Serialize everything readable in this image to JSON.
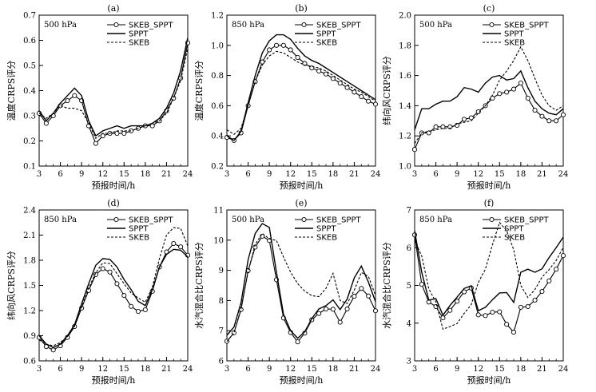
{
  "chart_data": [
    {
      "type": "line",
      "title": "(a)",
      "annotation": "500 hPa",
      "xlabel": "预报时间/h",
      "ylabel": "温度CRPS评分",
      "xlim": [
        3,
        24
      ],
      "ylim": [
        0.1,
        0.7
      ],
      "xticks": [
        3,
        6,
        9,
        12,
        15,
        18,
        21,
        24
      ],
      "yticks": [
        0.1,
        0.2,
        0.3,
        0.4,
        0.5,
        0.6,
        0.7
      ],
      "legend": "top-right",
      "x": [
        3,
        4,
        5,
        6,
        7,
        8,
        9,
        10,
        11,
        12,
        13,
        14,
        15,
        16,
        17,
        18,
        19,
        20,
        21,
        22,
        23,
        24
      ],
      "series": [
        {
          "name": "SKEB_SPPT",
          "style": "solid-circle",
          "values": [
            0.31,
            0.27,
            0.3,
            0.34,
            0.36,
            0.38,
            0.36,
            0.26,
            0.19,
            0.22,
            0.23,
            0.23,
            0.23,
            0.24,
            0.25,
            0.26,
            0.26,
            0.28,
            0.32,
            0.37,
            0.45,
            0.59
          ]
        },
        {
          "name": "SPPT",
          "style": "solid",
          "values": [
            0.32,
            0.28,
            0.31,
            0.35,
            0.38,
            0.41,
            0.38,
            0.28,
            0.22,
            0.24,
            0.25,
            0.26,
            0.25,
            0.26,
            0.26,
            0.26,
            0.27,
            0.29,
            0.33,
            0.39,
            0.48,
            0.61
          ]
        },
        {
          "name": "SKEB",
          "style": "dashed",
          "values": [
            0.31,
            0.29,
            0.31,
            0.34,
            0.33,
            0.33,
            0.32,
            0.27,
            0.21,
            0.23,
            0.23,
            0.24,
            0.24,
            0.24,
            0.25,
            0.26,
            0.27,
            0.28,
            0.31,
            0.37,
            0.44,
            0.57
          ]
        }
      ]
    },
    {
      "type": "line",
      "title": "(b)",
      "annotation": "850 hPa",
      "xlabel": "预报时间/h",
      "ylabel": "温度CRPS评分",
      "xlim": [
        3,
        24
      ],
      "ylim": [
        0.2,
        1.2
      ],
      "xticks": [
        3,
        6,
        9,
        12,
        15,
        18,
        21,
        24
      ],
      "yticks": [
        0.2,
        0.4,
        0.6,
        0.8,
        1.0,
        1.2
      ],
      "legend": "top-right",
      "x": [
        3,
        4,
        5,
        6,
        7,
        8,
        9,
        10,
        11,
        12,
        13,
        14,
        15,
        16,
        17,
        18,
        19,
        20,
        21,
        22,
        23,
        24
      ],
      "series": [
        {
          "name": "SKEB_SPPT",
          "style": "solid-circle",
          "values": [
            0.39,
            0.37,
            0.42,
            0.6,
            0.76,
            0.89,
            0.97,
            1.0,
            1.0,
            0.97,
            0.92,
            0.88,
            0.85,
            0.83,
            0.81,
            0.78,
            0.75,
            0.72,
            0.69,
            0.66,
            0.63,
            0.61
          ]
        },
        {
          "name": "SPPT",
          "style": "solid",
          "values": [
            0.4,
            0.37,
            0.43,
            0.62,
            0.8,
            0.95,
            1.03,
            1.07,
            1.07,
            1.04,
            0.98,
            0.93,
            0.9,
            0.88,
            0.85,
            0.82,
            0.79,
            0.76,
            0.73,
            0.7,
            0.67,
            0.64
          ]
        },
        {
          "name": "SKEB",
          "style": "dashed",
          "values": [
            0.44,
            0.41,
            0.45,
            0.6,
            0.76,
            0.87,
            0.93,
            0.96,
            0.95,
            0.92,
            0.89,
            0.87,
            0.86,
            0.85,
            0.83,
            0.8,
            0.77,
            0.74,
            0.71,
            0.69,
            0.66,
            0.63
          ]
        }
      ]
    },
    {
      "type": "line",
      "title": "(c)",
      "annotation": "500 hPa",
      "xlabel": "预报时间/h",
      "ylabel": "纬向风CRPS评分",
      "xlim": [
        3,
        24
      ],
      "ylim": [
        1.0,
        2.0
      ],
      "xticks": [
        3,
        6,
        9,
        12,
        15,
        18,
        21,
        24
      ],
      "yticks": [
        1.0,
        1.2,
        1.4,
        1.6,
        1.8,
        2.0
      ],
      "legend": "top-right",
      "x": [
        3,
        4,
        5,
        6,
        7,
        8,
        9,
        10,
        11,
        12,
        13,
        14,
        15,
        16,
        17,
        18,
        19,
        20,
        21,
        22,
        23,
        24
      ],
      "series": [
        {
          "name": "SKEB_SPPT",
          "style": "solid-circle",
          "values": [
            1.11,
            1.22,
            1.22,
            1.26,
            1.26,
            1.26,
            1.27,
            1.31,
            1.32,
            1.36,
            1.4,
            1.45,
            1.48,
            1.49,
            1.51,
            1.55,
            1.45,
            1.37,
            1.33,
            1.3,
            1.3,
            1.34
          ]
        },
        {
          "name": "SPPT",
          "style": "solid",
          "values": [
            1.24,
            1.38,
            1.38,
            1.41,
            1.43,
            1.43,
            1.46,
            1.52,
            1.51,
            1.49,
            1.55,
            1.59,
            1.6,
            1.57,
            1.58,
            1.63,
            1.52,
            1.43,
            1.38,
            1.35,
            1.34,
            1.38
          ]
        },
        {
          "name": "SKEB",
          "style": "dashed",
          "values": [
            1.15,
            1.22,
            1.23,
            1.24,
            1.25,
            1.25,
            1.28,
            1.29,
            1.3,
            1.35,
            1.4,
            1.47,
            1.57,
            1.63,
            1.7,
            1.79,
            1.7,
            1.58,
            1.47,
            1.4,
            1.37,
            1.4
          ]
        }
      ]
    },
    {
      "type": "line",
      "title": "(d)",
      "annotation": "850 hPa",
      "xlabel": "预报时间/h",
      "ylabel": "纬向风CRPS评分",
      "xlim": [
        3,
        24
      ],
      "ylim": [
        0.6,
        2.4
      ],
      "xticks": [
        3,
        6,
        9,
        12,
        15,
        18,
        21,
        24
      ],
      "yticks": [
        0.6,
        0.9,
        1.2,
        1.5,
        1.8,
        2.1,
        2.4
      ],
      "legend": "top-right",
      "x": [
        3,
        4,
        5,
        6,
        7,
        8,
        9,
        10,
        11,
        12,
        13,
        14,
        15,
        16,
        17,
        18,
        19,
        20,
        21,
        22,
        23,
        24
      ],
      "series": [
        {
          "name": "SKEB_SPPT",
          "style": "solid-circle",
          "values": [
            0.88,
            0.77,
            0.73,
            0.78,
            0.88,
            1.01,
            1.23,
            1.44,
            1.63,
            1.7,
            1.66,
            1.52,
            1.38,
            1.25,
            1.19,
            1.21,
            1.43,
            1.72,
            1.9,
            2.0,
            1.96,
            1.86
          ]
        },
        {
          "name": "SPPT",
          "style": "solid",
          "values": [
            0.9,
            0.8,
            0.76,
            0.8,
            0.9,
            1.03,
            1.28,
            1.52,
            1.74,
            1.82,
            1.81,
            1.72,
            1.57,
            1.45,
            1.31,
            1.26,
            1.45,
            1.72,
            1.87,
            1.93,
            1.92,
            1.84
          ]
        },
        {
          "name": "SKEB",
          "style": "dashed",
          "values": [
            0.85,
            0.8,
            0.78,
            0.82,
            0.89,
            1.01,
            1.24,
            1.47,
            1.65,
            1.77,
            1.76,
            1.64,
            1.52,
            1.41,
            1.35,
            1.3,
            1.48,
            1.82,
            2.1,
            2.19,
            2.18,
            1.97
          ]
        }
      ]
    },
    {
      "type": "line",
      "title": "(e)",
      "annotation": "500 hPa",
      "xlabel": "预报时间/h",
      "ylabel": "水汽混合比CRPS评分",
      "xlim": [
        3,
        24
      ],
      "ylim": [
        6.0,
        11.0
      ],
      "xticks": [
        3,
        6,
        9,
        12,
        15,
        18,
        21,
        24
      ],
      "yticks": [
        6.0,
        7.0,
        8.0,
        9.0,
        10.0,
        11.0
      ],
      "legend": "top-right",
      "x": [
        3,
        4,
        5,
        6,
        7,
        8,
        9,
        10,
        11,
        12,
        13,
        14,
        15,
        16,
        17,
        18,
        19,
        20,
        21,
        22,
        23,
        24
      ],
      "series": [
        {
          "name": "SKEB_SPPT",
          "style": "solid-circle",
          "values": [
            6.65,
            6.93,
            7.7,
            8.99,
            9.77,
            10.13,
            9.99,
            8.69,
            7.42,
            6.94,
            6.63,
            6.92,
            7.36,
            7.57,
            7.72,
            7.71,
            7.28,
            7.72,
            8.14,
            8.4,
            8.15,
            7.66
          ]
        },
        {
          "name": "SPPT",
          "style": "solid",
          "values": [
            6.85,
            7.12,
            7.93,
            9.35,
            10.22,
            10.55,
            10.42,
            8.94,
            7.54,
            7.0,
            6.75,
            6.96,
            7.4,
            7.72,
            7.83,
            8.02,
            7.7,
            8.05,
            8.75,
            9.14,
            8.61,
            7.96
          ]
        },
        {
          "name": "SKEB",
          "style": "dashed",
          "values": [
            6.64,
            6.92,
            7.74,
            8.95,
            9.86,
            10.22,
            10.04,
            9.99,
            9.44,
            8.94,
            8.56,
            8.31,
            8.16,
            8.13,
            8.4,
            8.9,
            8.0,
            7.9,
            8.34,
            8.93,
            8.8,
            8.17
          ]
        }
      ]
    },
    {
      "type": "line",
      "title": "(f)",
      "annotation": "850 hPa",
      "xlabel": "预报时间/h",
      "ylabel": "水汽混合比CRPS评分",
      "xlim": [
        3,
        24
      ],
      "ylim": [
        3,
        7
      ],
      "xticks": [
        3,
        6,
        9,
        12,
        15,
        18,
        21,
        24
      ],
      "yticks": [
        3,
        4,
        5,
        6,
        7
      ],
      "legend": "top-right",
      "x": [
        3,
        4,
        5,
        6,
        7,
        8,
        9,
        10,
        11,
        12,
        13,
        14,
        15,
        16,
        17,
        18,
        19,
        20,
        21,
        22,
        23,
        24
      ],
      "series": [
        {
          "name": "SKEB_SPPT",
          "style": "solid-circle",
          "values": [
            6.34,
            5.03,
            4.56,
            4.44,
            4.14,
            4.34,
            4.58,
            4.83,
            4.93,
            4.22,
            4.2,
            4.29,
            4.3,
            3.97,
            3.76,
            4.42,
            4.44,
            4.61,
            4.84,
            5.12,
            5.43,
            5.79
          ]
        },
        {
          "name": "SPPT",
          "style": "solid",
          "values": [
            6.45,
            5.35,
            4.61,
            4.65,
            4.21,
            4.47,
            4.69,
            4.92,
            4.99,
            4.33,
            4.42,
            4.62,
            4.8,
            4.81,
            4.55,
            5.35,
            5.43,
            5.35,
            5.44,
            5.74,
            6.0,
            6.28
          ]
        },
        {
          "name": "SKEB",
          "style": "dashed",
          "values": [
            6.19,
            5.78,
            4.91,
            4.56,
            3.84,
            3.91,
            3.99,
            4.26,
            4.49,
            5.08,
            5.43,
            6.08,
            6.67,
            6.45,
            5.95,
            5.0,
            4.68,
            4.89,
            5.22,
            5.42,
            5.66,
            6.01
          ]
        }
      ]
    }
  ]
}
